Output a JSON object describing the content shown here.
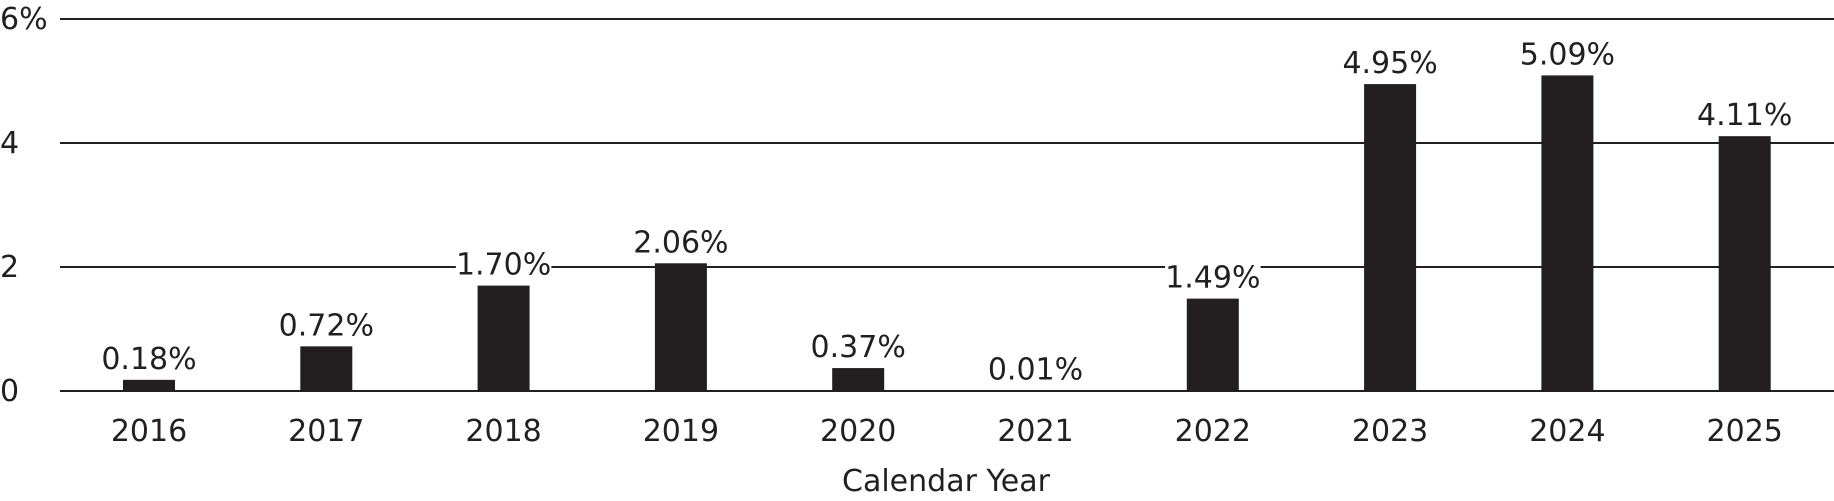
{
  "chart_data": {
    "type": "bar",
    "categories": [
      "2016",
      "2017",
      "2018",
      "2019",
      "2020",
      "2021",
      "2022",
      "2023",
      "2024",
      "2025"
    ],
    "values": [
      0.18,
      0.72,
      1.7,
      2.06,
      0.37,
      0.01,
      1.49,
      4.95,
      5.09,
      4.11
    ],
    "data_labels": [
      "0.18%",
      "0.72%",
      "1.70%",
      "2.06%",
      "0.37%",
      "0.01%",
      "1.49%",
      "4.95%",
      "5.09%",
      "4.11%"
    ],
    "y_ticks": [
      0,
      2,
      4,
      6
    ],
    "y_tick_labels": [
      "0",
      "2",
      "4",
      "6%"
    ],
    "ylim": [
      0,
      6
    ],
    "xlabel": "Calendar Year",
    "ylabel": "",
    "grid": true,
    "legend": "none",
    "colors": {
      "bar": "#231f20",
      "grid": "#231f20",
      "text": "#231f20",
      "background": "#ffffff"
    }
  }
}
